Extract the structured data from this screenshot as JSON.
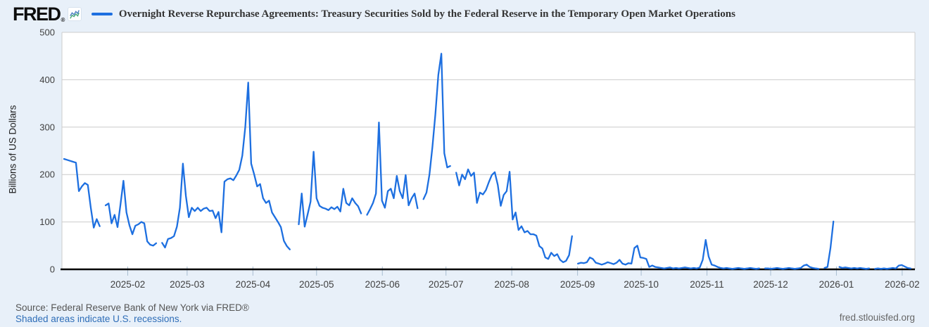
{
  "header": {
    "logo_text": "FRED",
    "logo_reg": "®"
  },
  "legend": {
    "series_label": "Overnight Reverse Repurchase Agreements: Treasury Securities Sold by the Federal Reserve in the Temporary Open Market Operations"
  },
  "y_axis": {
    "title": "Billions of US Dollars"
  },
  "footer": {
    "source": "Source: Federal Reserve Bank of New York via FRED®",
    "recession_note": "Shaded areas indicate U.S. recessions.",
    "site": "fred.stlouisfed.org"
  },
  "colors": {
    "background": "#e8f0f9",
    "plot_background": "#ffffff",
    "grid": "#cccccc",
    "axis": "#000000",
    "tick": "#a8bdd1",
    "tick_label": "#404040",
    "line": "#1d6fe0",
    "icon_line_blue": "#4a7fc1",
    "icon_line_green": "#49a97a",
    "link": "#2f6eb8"
  },
  "chart_data": {
    "type": "line",
    "title": "Overnight Reverse Repurchase Agreements: Treasury Securities Sold by the Federal Reserve in the Temporary Open Market Operations",
    "ylabel": "Billions of US Dollars",
    "ylim": [
      0,
      500
    ],
    "y_ticks": [
      0,
      100,
      200,
      300,
      400,
      500
    ],
    "grid": true,
    "legend_position": "top",
    "frequency": "business-daily",
    "x_start": "2025-01-02",
    "x_end": "2026-02-05",
    "x_span_days": 402,
    "x_ticks": [
      {
        "label": "2025-02",
        "day": 31
      },
      {
        "label": "2025-03",
        "day": 59
      },
      {
        "label": "2025-04",
        "day": 90
      },
      {
        "label": "2025-05",
        "day": 120
      },
      {
        "label": "2025-06",
        "day": 151
      },
      {
        "label": "2025-07",
        "day": 181
      },
      {
        "label": "2025-08",
        "day": 212
      },
      {
        "label": "2025-09",
        "day": 243
      },
      {
        "label": "2025-10",
        "day": 273
      },
      {
        "label": "2025-11",
        "day": 304
      },
      {
        "label": "2025-12",
        "day": 334
      },
      {
        "label": "2026-01",
        "day": 365
      },
      {
        "label": "2026-02",
        "day": 396
      }
    ],
    "values": [
      233,
      231,
      229,
      227,
      225,
      165,
      175,
      182,
      178,
      130,
      88,
      106,
      91,
      null,
      135,
      139,
      97,
      115,
      89,
      137,
      187,
      120,
      93,
      74,
      92,
      95,
      100,
      97,
      59,
      52,
      50,
      55,
      null,
      56,
      46,
      64,
      66,
      70,
      90,
      130,
      223,
      155,
      110,
      130,
      123,
      130,
      123,
      128,
      130,
      123,
      124,
      108,
      121,
      78,
      185,
      190,
      192,
      188,
      198,
      210,
      240,
      300,
      394,
      223,
      200,
      175,
      180,
      150,
      140,
      145,
      120,
      110,
      100,
      89,
      60,
      49,
      42,
      null,
      null,
      95,
      160,
      90,
      116,
      143,
      248,
      150,
      134,
      130,
      128,
      125,
      131,
      127,
      132,
      122,
      170,
      140,
      135,
      150,
      140,
      133,
      118,
      null,
      115,
      127,
      140,
      160,
      310,
      145,
      130,
      165,
      170,
      150,
      197,
      165,
      150,
      199,
      135,
      150,
      160,
      129,
      null,
      148,
      162,
      200,
      258,
      327,
      410,
      455,
      245,
      215,
      218,
      null,
      204,
      177,
      200,
      190,
      211,
      197,
      204,
      140,
      162,
      158,
      167,
      184,
      199,
      205,
      178,
      134,
      157,
      165,
      206,
      105,
      120,
      83,
      91,
      78,
      81,
      74,
      74,
      71,
      49,
      44,
      25,
      22,
      35,
      28,
      32,
      20,
      15,
      18,
      30,
      70,
      null,
      12,
      14,
      13,
      15,
      25,
      22,
      14,
      12,
      10,
      12,
      15,
      13,
      11,
      14,
      20,
      12,
      10,
      13,
      12,
      45,
      50,
      25,
      24,
      22,
      5,
      8,
      5,
      4,
      3,
      2,
      3,
      4,
      2,
      3,
      2,
      3,
      4,
      3,
      2,
      3,
      2,
      4,
      20,
      62,
      27,
      10,
      8,
      5,
      3,
      2,
      3,
      2,
      1,
      2,
      3,
      2,
      1,
      2,
      3,
      2,
      1,
      2,
      null,
      2,
      2,
      1,
      2,
      3,
      2,
      1,
      2,
      3,
      2,
      1,
      2,
      3,
      8,
      10,
      5,
      3,
      2,
      1,
      null,
      3,
      5,
      45,
      101,
      null,
      5,
      3,
      4,
      3,
      2,
      3,
      2,
      3,
      2,
      1,
      2,
      null,
      1,
      2,
      1,
      2,
      1,
      2,
      3,
      2,
      8,
      9,
      6,
      3,
      2
    ]
  }
}
